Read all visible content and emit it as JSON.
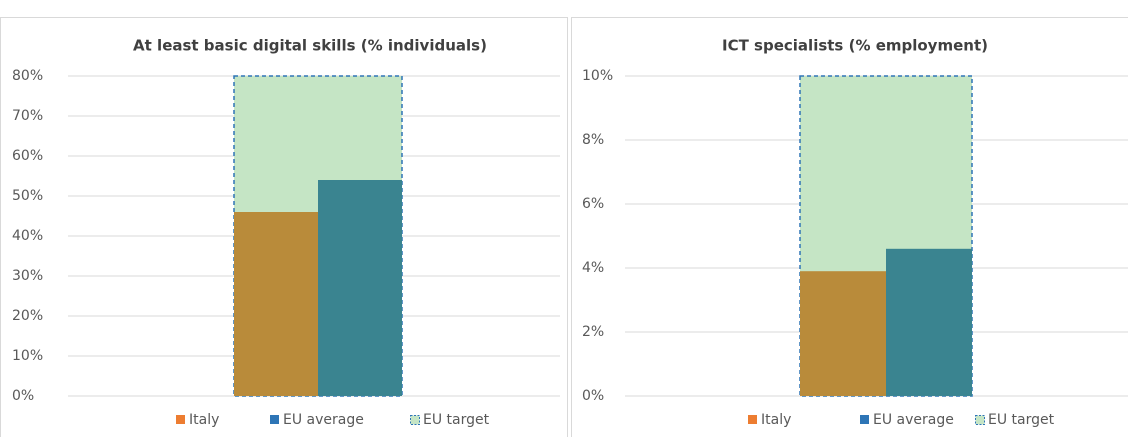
{
  "chart_data": [
    {
      "type": "bar",
      "title": "At least basic digital skills (% individuals)",
      "categories": [
        null
      ],
      "series": [
        {
          "name": "Italy",
          "color": "#b98b3a",
          "legend_color": "#ed7d31",
          "values": [
            46
          ]
        },
        {
          "name": "EU average",
          "color": "#3a8490",
          "legend_color": "#2e75b6",
          "values": [
            54
          ]
        },
        {
          "name": "EU target",
          "color": "#c5e5c5",
          "legend_color": "#2e75b6",
          "values": [
            80
          ]
        }
      ],
      "ylim": [
        0,
        80
      ],
      "yticks": [
        {
          "value": 0,
          "label": "0%"
        },
        {
          "value": 10,
          "label": "10%"
        },
        {
          "value": 20,
          "label": "20%"
        },
        {
          "value": 30,
          "label": "30%"
        },
        {
          "value": 40,
          "label": "40%"
        },
        {
          "value": 50,
          "label": "50%"
        },
        {
          "value": 60,
          "label": "60%"
        },
        {
          "value": 70,
          "label": "70%"
        },
        {
          "value": 80,
          "label": "80%"
        }
      ],
      "grid": true
    },
    {
      "type": "bar",
      "title": "ICT specialists (% employment)",
      "categories": [
        null
      ],
      "series": [
        {
          "name": "Italy",
          "color": "#b98b3a",
          "legend_color": "#ed7d31",
          "values": [
            3.9
          ]
        },
        {
          "name": "EU average",
          "color": "#3a8490",
          "legend_color": "#2e75b6",
          "values": [
            4.6
          ]
        },
        {
          "name": "EU target",
          "color": "#c5e5c5",
          "legend_color": "#2e75b6",
          "values": [
            10
          ]
        }
      ],
      "ylim": [
        0,
        10
      ],
      "yticks": [
        {
          "value": 0,
          "label": "0%"
        },
        {
          "value": 2,
          "label": "2%"
        },
        {
          "value": 4,
          "label": "4%"
        },
        {
          "value": 6,
          "label": "6%"
        },
        {
          "value": 8,
          "label": "8%"
        },
        {
          "value": 10,
          "label": "10%"
        }
      ],
      "grid": true
    }
  ]
}
